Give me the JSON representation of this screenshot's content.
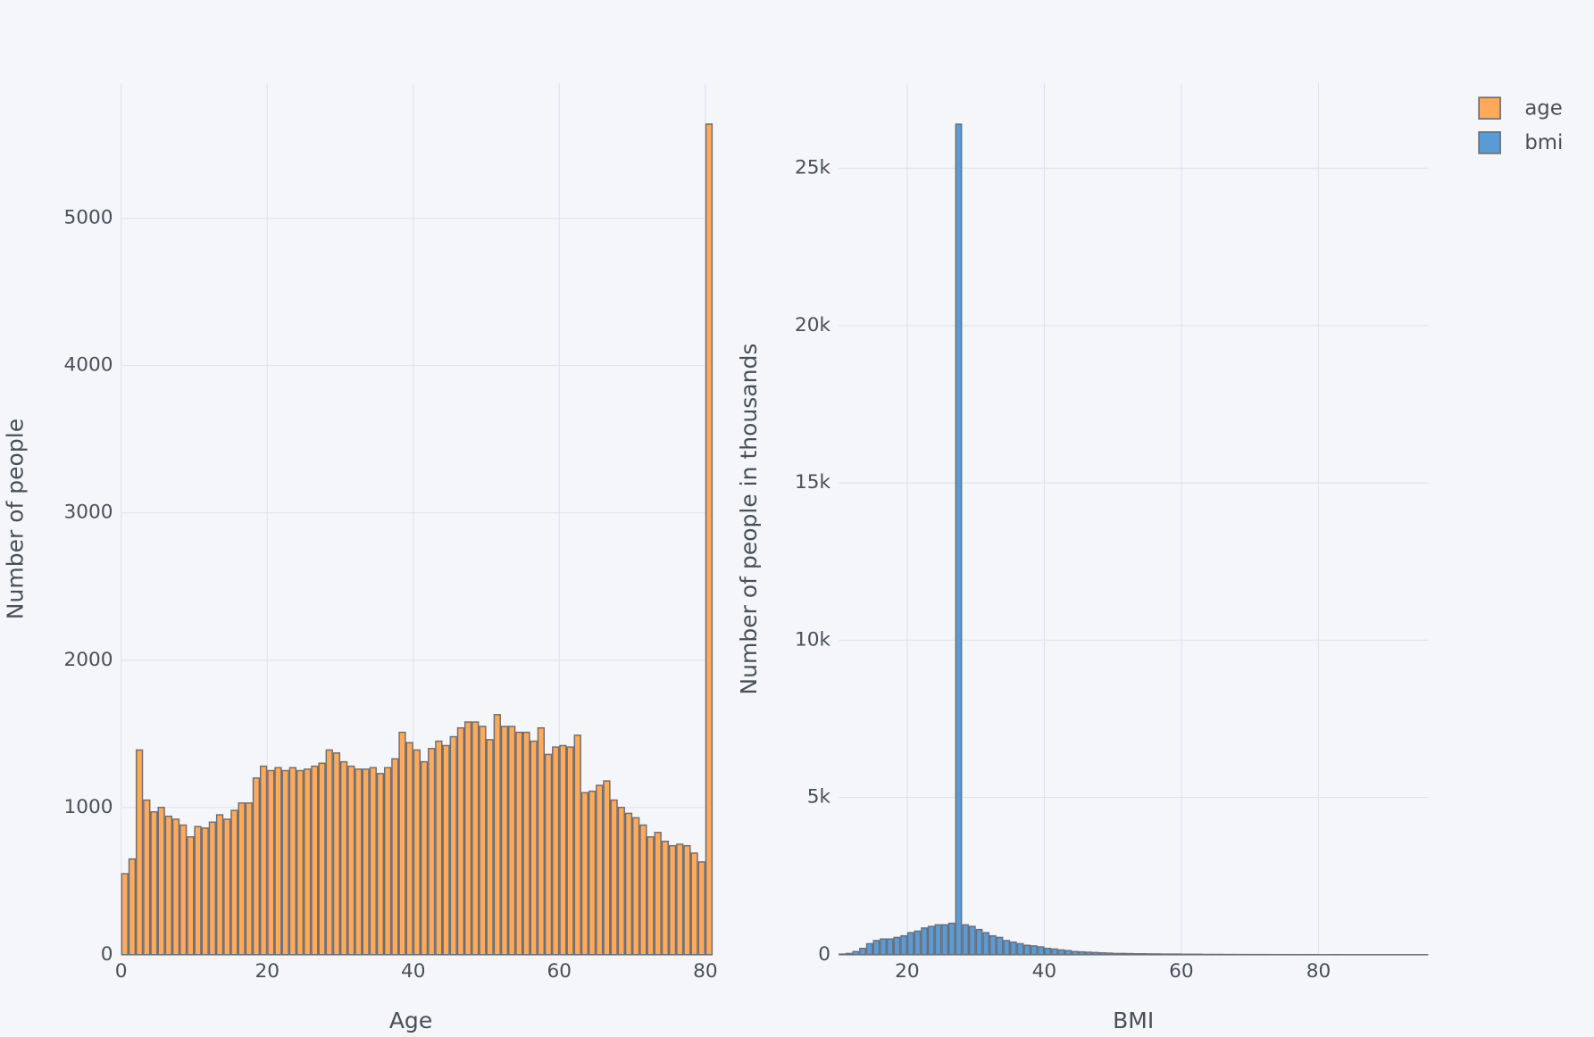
{
  "chart_data": [
    {
      "type": "histogram",
      "name": "age",
      "color": "#ffa95a",
      "line_color": "#6b6f78",
      "xlabel": "Age",
      "ylabel": "Number of people",
      "bins": [
        0,
        1,
        2,
        3,
        4,
        5,
        6,
        7,
        8,
        9,
        10,
        11,
        12,
        13,
        14,
        15,
        16,
        17,
        18,
        19,
        20,
        21,
        22,
        23,
        24,
        25,
        26,
        27,
        28,
        29,
        30,
        31,
        32,
        33,
        34,
        35,
        36,
        37,
        38,
        39,
        40,
        41,
        42,
        43,
        44,
        45,
        46,
        47,
        48,
        49,
        50,
        51,
        52,
        53,
        54,
        55,
        56,
        57,
        58,
        59,
        60,
        61,
        62,
        63,
        64,
        65,
        66,
        67,
        68,
        69,
        70,
        71,
        72,
        73,
        74,
        75,
        76,
        77,
        78,
        79,
        80,
        81
      ],
      "values": [
        550,
        650,
        1390,
        1050,
        970,
        1000,
        940,
        920,
        880,
        800,
        870,
        860,
        900,
        950,
        920,
        980,
        1030,
        1030,
        1200,
        1280,
        1250,
        1270,
        1250,
        1270,
        1250,
        1260,
        1280,
        1300,
        1390,
        1370,
        1310,
        1280,
        1260,
        1260,
        1270,
        1230,
        1270,
        1330,
        1510,
        1440,
        1390,
        1310,
        1400,
        1450,
        1420,
        1480,
        1540,
        1580,
        1580,
        1550,
        1460,
        1630,
        1550,
        1550,
        1510,
        1510,
        1450,
        1540,
        1360,
        1410,
        1420,
        1410,
        1490,
        1100,
        1110,
        1150,
        1180,
        1050,
        1000,
        960,
        930,
        880,
        800,
        830,
        770,
        740,
        750,
        740,
        690,
        630,
        5640
      ],
      "xlim": [
        0,
        81
      ],
      "xticks": [
        0,
        20,
        40,
        60,
        80
      ],
      "ylim": [
        0,
        5917
      ],
      "yticks": [
        0,
        1000,
        2000,
        3000,
        4000,
        5000
      ],
      "grid": true
    },
    {
      "type": "histogram",
      "name": "bmi",
      "color": "#5b9bd5",
      "line_color": "#6b6f78",
      "xlabel": "BMI",
      "ylabel": "Number of people in thousands",
      "bins": [
        10,
        11,
        12,
        13,
        14,
        15,
        16,
        17,
        18,
        19,
        20,
        21,
        22,
        23,
        24,
        25,
        26,
        27,
        28,
        29,
        30,
        31,
        32,
        33,
        34,
        35,
        36,
        37,
        38,
        39,
        40,
        41,
        42,
        43,
        44,
        45,
        46,
        47,
        48,
        49,
        50,
        51,
        52,
        53,
        54,
        55,
        56,
        57,
        58,
        59,
        60,
        61,
        62,
        63,
        64,
        65,
        66,
        67,
        68,
        69,
        70,
        71,
        72,
        73,
        74,
        75,
        76,
        77,
        78,
        79,
        80,
        81,
        82,
        83,
        84,
        85,
        86,
        87,
        88,
        89,
        90,
        91,
        92,
        93,
        94,
        95,
        96
      ],
      "values": [
        20,
        40,
        100,
        200,
        350,
        450,
        500,
        500,
        550,
        600,
        700,
        750,
        850,
        900,
        950,
        950,
        1000,
        26400,
        950,
        900,
        800,
        700,
        600,
        550,
        450,
        400,
        350,
        300,
        280,
        250,
        200,
        180,
        150,
        130,
        100,
        90,
        80,
        70,
        60,
        50,
        40,
        40,
        35,
        30,
        30,
        25,
        25,
        20,
        20,
        20,
        15,
        15,
        15,
        10,
        10,
        10,
        8,
        8,
        6,
        6,
        5,
        5,
        5,
        4,
        3,
        3,
        2,
        2,
        2,
        2,
        1,
        1,
        2,
        1,
        1,
        1,
        1,
        1,
        1,
        1,
        1,
        1,
        1,
        1,
        1,
        1
      ],
      "xlim": [
        10,
        96
      ],
      "xticks": [
        20,
        40,
        60,
        80
      ],
      "ylim": [
        0,
        27700
      ],
      "yticks": [
        0,
        {
          "value": 5000,
          "label": "5k"
        },
        {
          "value": 10000,
          "label": "10k"
        },
        {
          "value": 15000,
          "label": "15k"
        },
        {
          "value": 20000,
          "label": "20k"
        },
        {
          "value": 25000,
          "label": "25k"
        }
      ],
      "grid": true
    }
  ]
}
